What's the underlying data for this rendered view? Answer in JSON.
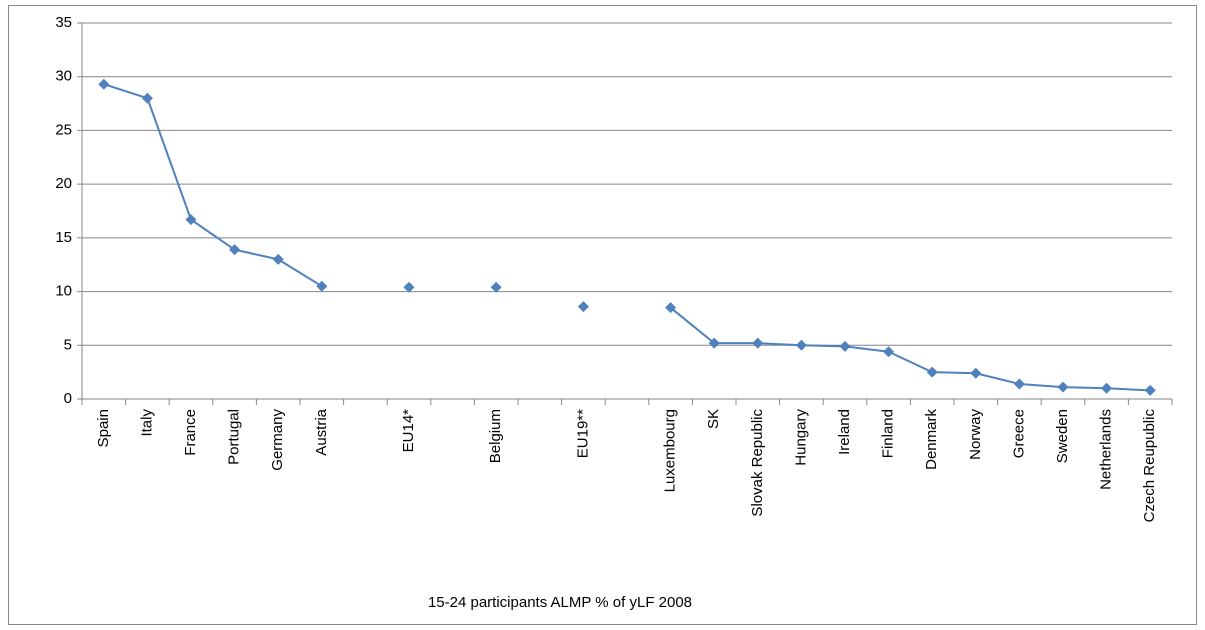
{
  "chart_data": {
    "type": "line",
    "x_label": "15-24 participants ALMP % of yLF 2008",
    "categories": [
      "Spain",
      "Italy",
      "France",
      "Portugal",
      "Germany",
      "Austria",
      null,
      "EU14*",
      null,
      "Belgium",
      null,
      "EU19**",
      null,
      "Luxembourg",
      "SK",
      "Slovak Republic",
      "Hungary",
      "Ireland",
      "Finland",
      "Denmark",
      "Norway",
      "Greece",
      "Sweden",
      "Netherlands",
      "Czech Reupublic"
    ],
    "values": [
      29.3,
      28,
      16.7,
      13.9,
      13,
      10.5,
      null,
      10.4,
      null,
      10.4,
      null,
      8.6,
      null,
      8.5,
      5.2,
      5.2,
      5.0,
      4.9,
      4.4,
      2.5,
      2.4,
      1.4,
      1.1,
      1.0,
      0.8
    ],
    "color": "#4f81bd",
    "ylim": [
      0,
      35
    ],
    "yticks": [
      0,
      5,
      10,
      15,
      20,
      25,
      30,
      35
    ],
    "grid": true
  }
}
